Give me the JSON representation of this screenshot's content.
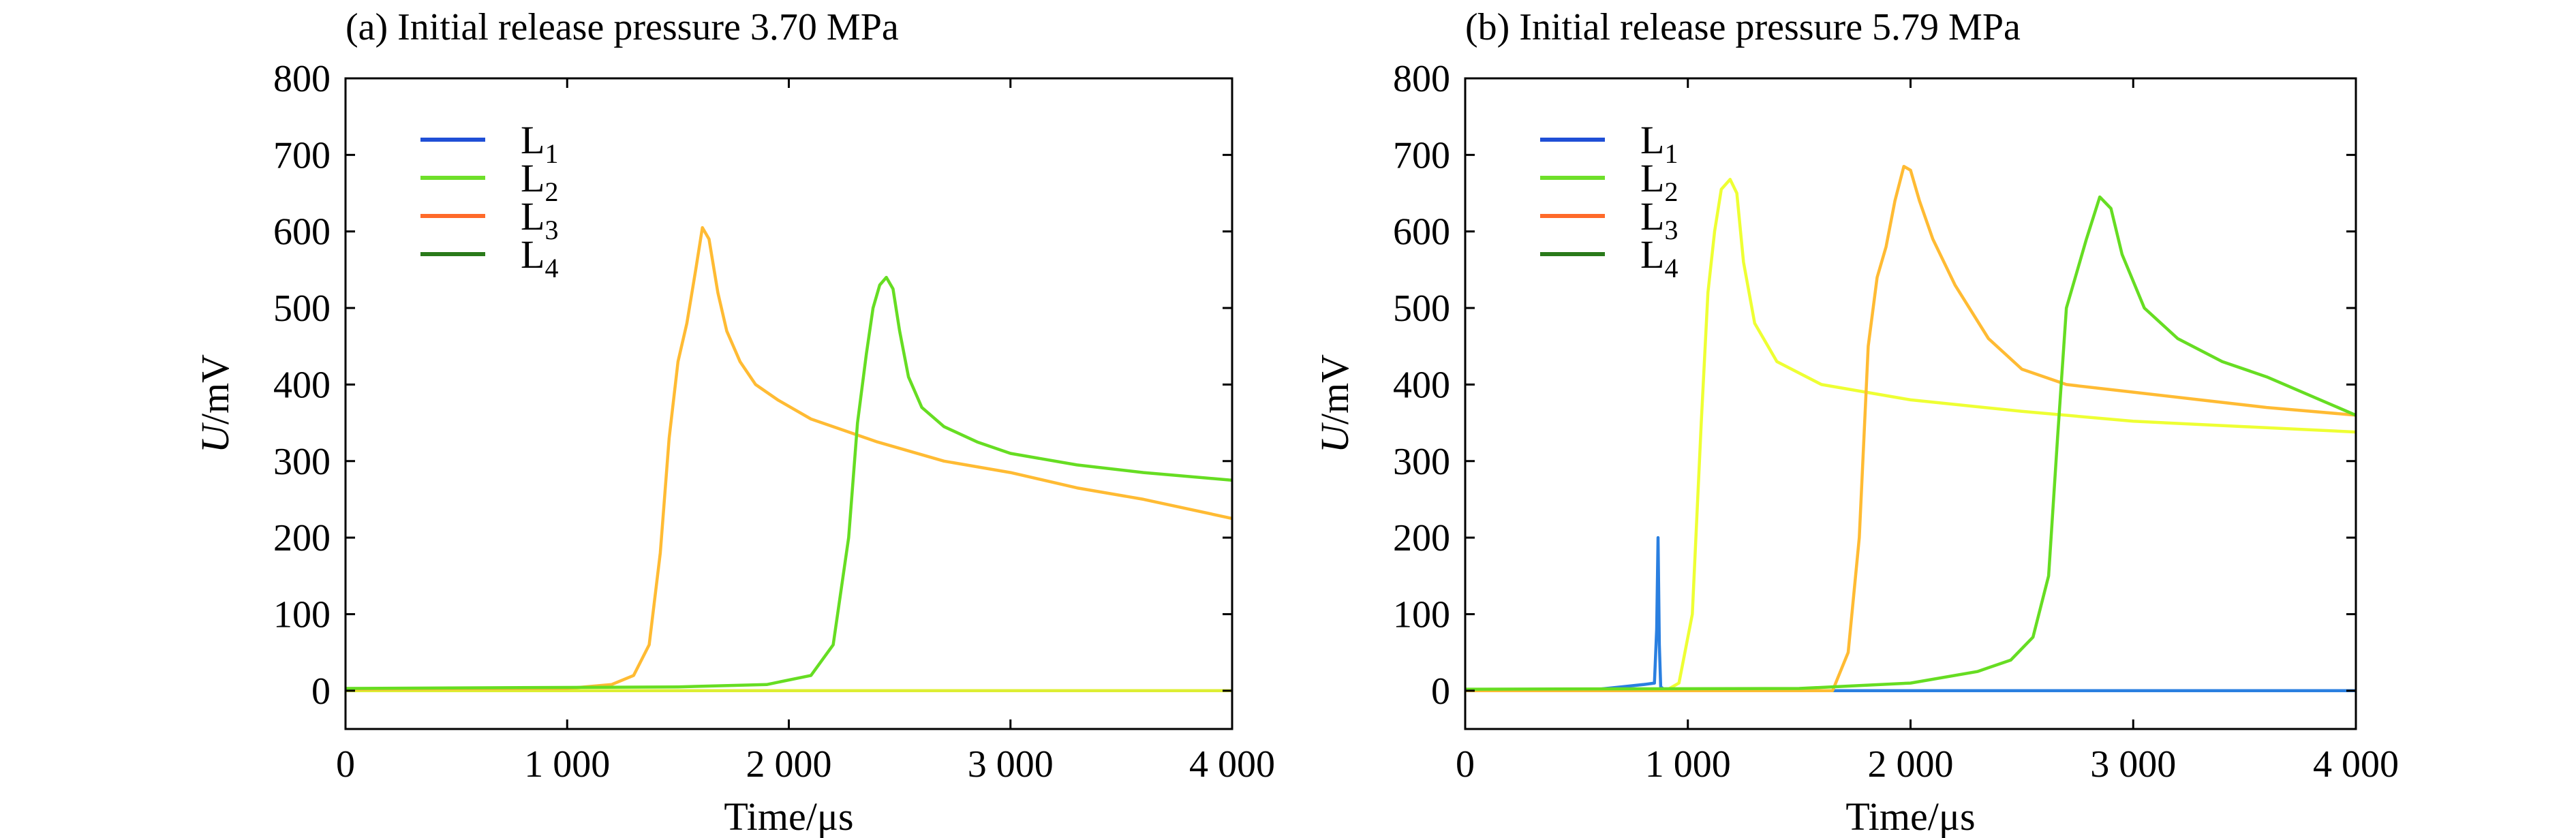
{
  "chart_data": [
    {
      "type": "line",
      "title": "(a) Initial release pressure 3.70 MPa",
      "xlabel": "Time/μs",
      "ylabel_italic": "U",
      "ylabel_rest": "/mV",
      "xlim": [
        0,
        4000
      ],
      "ylim": [
        -50,
        800
      ],
      "xticks": [
        0,
        1000,
        2000,
        3000,
        4000
      ],
      "xtick_labels": [
        "0",
        "1 000",
        "2 000",
        "3 000",
        "4 000"
      ],
      "yticks": [
        0,
        100,
        200,
        300,
        400,
        500,
        600,
        700,
        800
      ],
      "ytick_labels": [
        "0",
        "100",
        "200",
        "300",
        "400",
        "500",
        "600",
        "700",
        "800"
      ],
      "grid": false,
      "legend_position": "top-left",
      "legend": [
        {
          "base": "L",
          "sub": "1",
          "color": "#1f4fd6"
        },
        {
          "base": "L",
          "sub": "2",
          "color": "#6ee02a"
        },
        {
          "base": "L",
          "sub": "3",
          "color": "#ff6a2a"
        },
        {
          "base": "L",
          "sub": "4",
          "color": "#2a7a1a"
        }
      ],
      "series": [
        {
          "color": "#ddee33",
          "x": [
            0,
            1000,
            2000,
            3000,
            4000
          ],
          "y": [
            0,
            0,
            0,
            0,
            0
          ]
        },
        {
          "color": "#ffbb33",
          "x": [
            0,
            1000,
            1200,
            1300,
            1370,
            1420,
            1460,
            1500,
            1540,
            1580,
            1610,
            1640,
            1680,
            1720,
            1780,
            1850,
            1950,
            2100,
            2400,
            2700,
            3000,
            3300,
            3600,
            4000
          ],
          "y": [
            2,
            3,
            8,
            20,
            60,
            180,
            330,
            430,
            480,
            550,
            605,
            590,
            520,
            470,
            430,
            400,
            380,
            355,
            325,
            300,
            285,
            265,
            250,
            225
          ]
        },
        {
          "color": "#66dd22",
          "x": [
            0,
            1500,
            1900,
            2100,
            2200,
            2270,
            2310,
            2350,
            2380,
            2410,
            2440,
            2470,
            2500,
            2540,
            2600,
            2700,
            2850,
            3000,
            3300,
            3600,
            4000
          ],
          "y": [
            3,
            5,
            8,
            20,
            60,
            200,
            350,
            440,
            500,
            530,
            540,
            525,
            470,
            410,
            370,
            345,
            325,
            310,
            295,
            285,
            275
          ]
        }
      ]
    },
    {
      "type": "line",
      "title": "(b) Initial release pressure 5.79 MPa",
      "xlabel": "Time/μs",
      "ylabel_italic": "U",
      "ylabel_rest": "/mV",
      "xlim": [
        0,
        4000
      ],
      "ylim": [
        -50,
        800
      ],
      "xticks": [
        0,
        1000,
        2000,
        3000,
        4000
      ],
      "xtick_labels": [
        "0",
        "1 000",
        "2 000",
        "3 000",
        "4 000"
      ],
      "yticks": [
        0,
        100,
        200,
        300,
        400,
        500,
        600,
        700,
        800
      ],
      "ytick_labels": [
        "0",
        "100",
        "200",
        "300",
        "400",
        "500",
        "600",
        "700",
        "800"
      ],
      "grid": false,
      "legend_position": "top-left",
      "legend": [
        {
          "base": "L",
          "sub": "1",
          "color": "#1f4fd6"
        },
        {
          "base": "L",
          "sub": "2",
          "color": "#6ee02a"
        },
        {
          "base": "L",
          "sub": "3",
          "color": "#ff6a2a"
        },
        {
          "base": "L",
          "sub": "4",
          "color": "#2a7a1a"
        }
      ],
      "series": [
        {
          "color": "#2a7fe0",
          "x": [
            0,
            600,
            700,
            800,
            850,
            860,
            866,
            872,
            878,
            900,
            1000,
            2000,
            3000,
            4000
          ],
          "y": [
            0,
            2,
            5,
            8,
            10,
            80,
            200,
            60,
            5,
            0,
            0,
            0,
            0,
            0
          ]
        },
        {
          "color": "#eeff33",
          "x": [
            0,
            900,
            960,
            1020,
            1060,
            1090,
            1120,
            1150,
            1190,
            1220,
            1250,
            1300,
            1400,
            1600,
            2000,
            2500,
            3000,
            3500,
            4000
          ],
          "y": [
            0,
            0,
            10,
            100,
            350,
            520,
            600,
            655,
            668,
            650,
            560,
            480,
            430,
            400,
            380,
            365,
            352,
            345,
            338
          ]
        },
        {
          "color": "#ffbb33",
          "x": [
            0,
            1650,
            1720,
            1770,
            1810,
            1850,
            1890,
            1930,
            1970,
            2000,
            2040,
            2100,
            2200,
            2350,
            2500,
            2700,
            3000,
            3300,
            3600,
            4000
          ],
          "y": [
            0,
            0,
            50,
            200,
            450,
            540,
            580,
            640,
            685,
            680,
            640,
            590,
            530,
            460,
            420,
            400,
            390,
            380,
            370,
            360
          ]
        },
        {
          "color": "#66dd22",
          "x": [
            0,
            1500,
            2000,
            2300,
            2450,
            2550,
            2620,
            2660,
            2700,
            2740,
            2790,
            2850,
            2900,
            2950,
            3050,
            3200,
            3400,
            3600,
            3800,
            4000
          ],
          "y": [
            2,
            3,
            10,
            25,
            40,
            70,
            150,
            330,
            500,
            540,
            590,
            645,
            630,
            570,
            500,
            460,
            430,
            410,
            385,
            360
          ]
        }
      ]
    }
  ]
}
